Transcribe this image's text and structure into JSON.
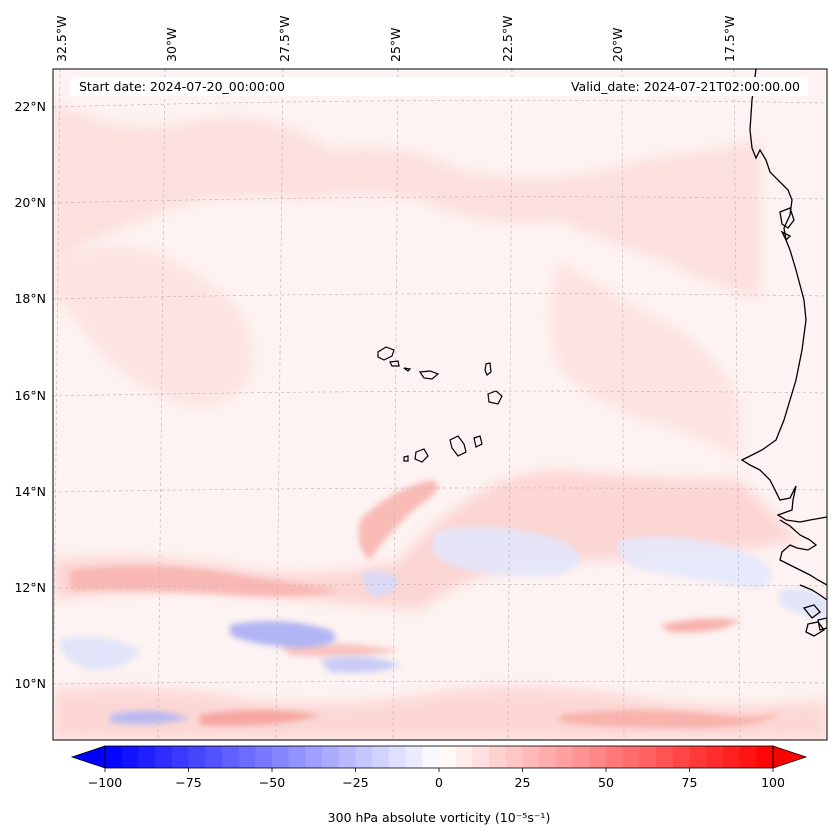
{
  "header": {
    "start_date": "Start date: 2024-07-20_00:00:00",
    "valid_date": "Valid_date: 2024-07-21T02:00:00.00"
  },
  "longitude_labels": [
    "32.5°W",
    "30°W",
    "27.5°W",
    "25°W",
    "22.5°W",
    "20°W",
    "17.5°W"
  ],
  "latitude_labels": [
    "22°N",
    "20°N",
    "18°N",
    "16°N",
    "14°N",
    "12°N",
    "10°N"
  ],
  "colorbar": {
    "min": -100,
    "max": 100,
    "ticks": [
      "−100",
      "−75",
      "−50",
      "−25",
      "0",
      "25",
      "50",
      "75",
      "100"
    ],
    "label": "300 hPa absolute vorticity (10⁻⁵s⁻¹)",
    "neg_color": "#0000ff",
    "pos_color": "#ff0000",
    "extend": "both"
  },
  "colors": {
    "background_field": "#fdf0ef",
    "coastline": "#000000",
    "gridline": "#bbbbbb"
  }
}
